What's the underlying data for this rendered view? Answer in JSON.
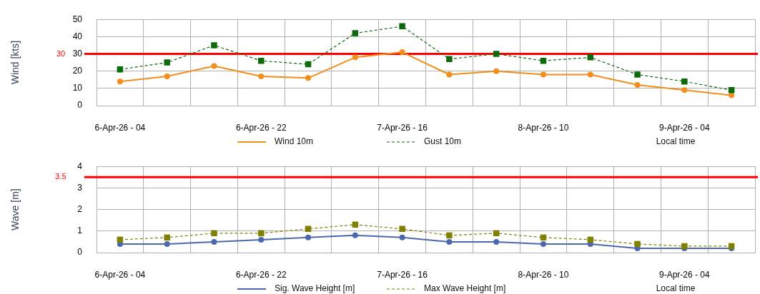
{
  "chart_data": [
    {
      "type": "line",
      "categories": [
        "6-Apr-26 - 04",
        null,
        null,
        "6-Apr-26 - 22",
        null,
        null,
        "7-Apr-26 - 16",
        null,
        null,
        "8-Apr-26 - 10",
        null,
        null,
        "9-Apr-26 - 04",
        null
      ],
      "ylabel": "Wind [kts]",
      "xlabel": "Local time",
      "ylim": [
        0,
        50
      ],
      "yticks": [
        0,
        10,
        20,
        30,
        40,
        50
      ],
      "grid": true,
      "legend": "bottom",
      "series": [
        {
          "name": "Wind 10m",
          "color": "#f28e1c",
          "marker": "circle",
          "line_style": "solid",
          "values": [
            14,
            17,
            23,
            17,
            16,
            28,
            31,
            18,
            20,
            18,
            18,
            12,
            9,
            6
          ]
        },
        {
          "name": "Gust 10m",
          "color": "#0b6b0b",
          "marker": "square",
          "line_style": "dashed",
          "values": [
            21,
            25,
            35,
            26,
            24,
            42,
            46,
            27,
            30,
            26,
            28,
            18,
            14,
            9
          ]
        }
      ],
      "ref_lines": [
        {
          "axis": "y",
          "value": 30,
          "label": "30",
          "color": "#ff0000"
        }
      ]
    },
    {
      "type": "line",
      "categories": [
        "6-Apr-26 - 04",
        null,
        null,
        "6-Apr-26 - 22",
        null,
        null,
        "7-Apr-26 - 16",
        null,
        null,
        "8-Apr-26 - 10",
        null,
        null,
        "9-Apr-26 - 04",
        null
      ],
      "ylabel": "Wave [m]",
      "xlabel": "Local time",
      "ylim": [
        0,
        4
      ],
      "yticks": [
        0,
        1,
        2,
        3,
        4
      ],
      "grid": true,
      "legend": "bottom",
      "series": [
        {
          "name": "Sig. Wave Height [m]",
          "color": "#4c68ad",
          "marker": "circle",
          "line_style": "solid",
          "values": [
            0.4,
            0.4,
            0.5,
            0.6,
            0.7,
            0.8,
            0.7,
            0.5,
            0.5,
            0.4,
            0.4,
            0.2,
            0.2,
            0.2
          ]
        },
        {
          "name": "Max Wave Height [m]",
          "color": "#808000",
          "marker": "square",
          "line_style": "dashed",
          "values": [
            0.6,
            0.7,
            0.9,
            0.9,
            1.1,
            1.3,
            1.1,
            0.8,
            0.9,
            0.7,
            0.6,
            0.4,
            0.3,
            0.3
          ]
        }
      ],
      "ref_lines": [
        {
          "axis": "y",
          "value": 3.5,
          "label": "3.5",
          "color": "#ff0000"
        }
      ]
    }
  ]
}
